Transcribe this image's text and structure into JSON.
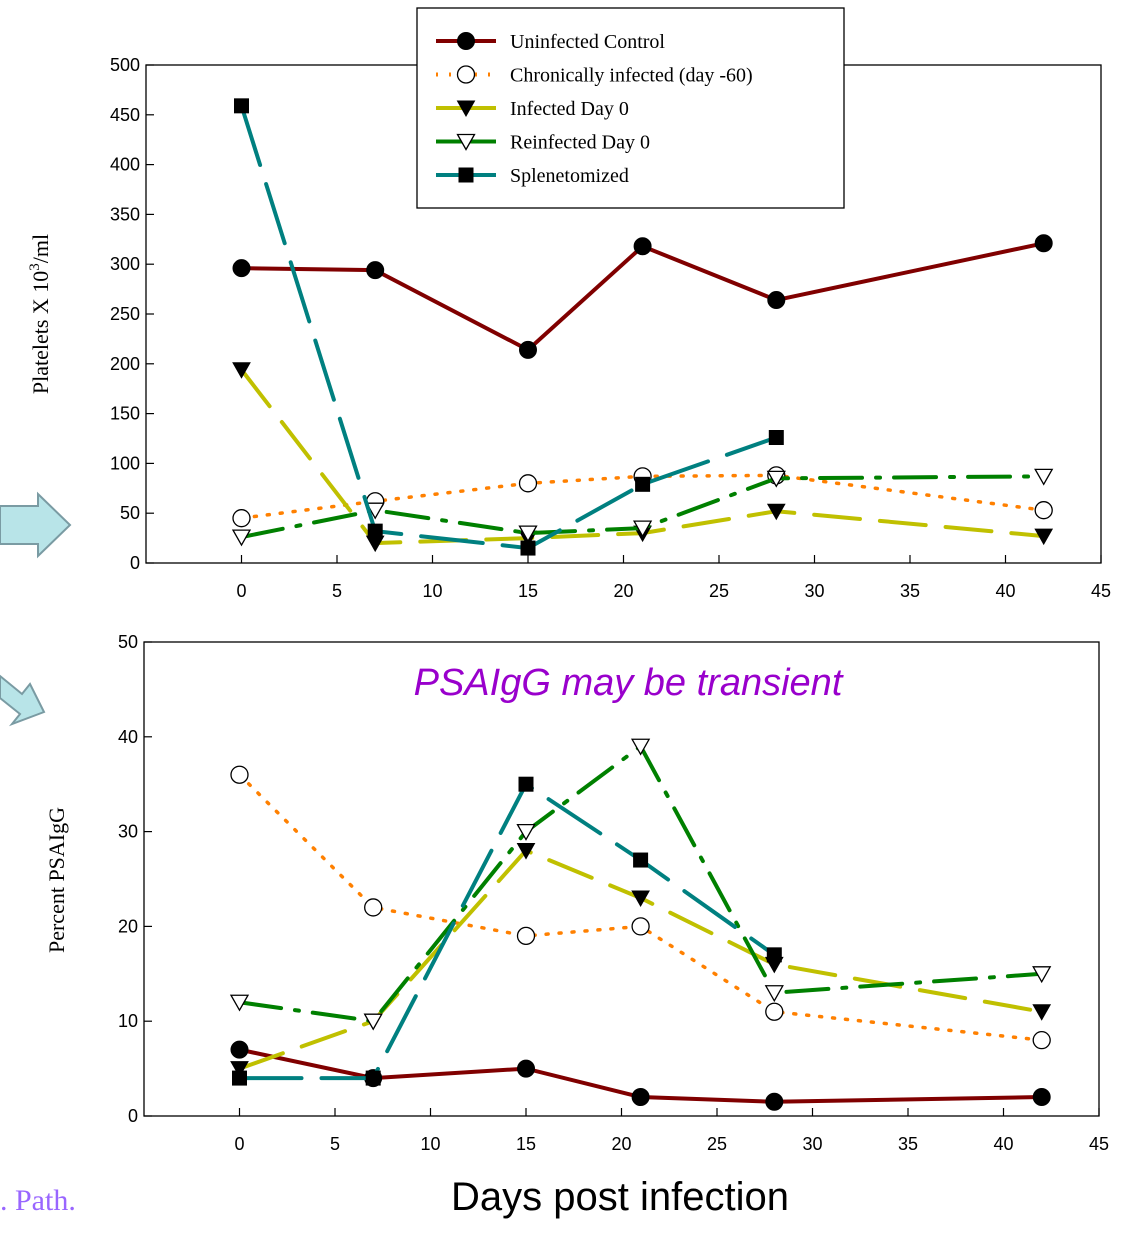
{
  "chart_data": [
    {
      "type": "line",
      "ylabel_main": "Platelets X 10",
      "ylabel_sup": "3",
      "ylabel_tail": "/ml",
      "xlim": [
        -5,
        45
      ],
      "ylim": [
        0,
        500
      ],
      "xticks": [
        0,
        5,
        10,
        15,
        20,
        25,
        30,
        35,
        40,
        45
      ],
      "yticks": [
        0,
        50,
        100,
        150,
        200,
        250,
        300,
        350,
        400,
        450,
        500
      ],
      "grid": false,
      "legend_position": "top-center",
      "series": [
        {
          "name": "Uninfected Control",
          "color": "#800000",
          "dash": "solid",
          "marker": "filled-circle",
          "x": [
            0,
            7,
            15,
            21,
            28,
            42
          ],
          "y": [
            296,
            294,
            214,
            318,
            264,
            321
          ]
        },
        {
          "name": "Chronically infected (day -60)",
          "color": "#FF8000",
          "dash": "dot",
          "marker": "open-circle",
          "x": [
            0,
            7,
            15,
            21,
            28,
            42
          ],
          "y": [
            45,
            62,
            80,
            87,
            88,
            53
          ]
        },
        {
          "name": "Infected Day 0",
          "color": "#C0C000",
          "dash": "longdash",
          "marker": "filled-triangle",
          "x": [
            0,
            7,
            15,
            21,
            28,
            42
          ],
          "y": [
            194,
            20,
            25,
            30,
            52,
            27
          ]
        },
        {
          "name": "Reinfected Day 0",
          "color": "#008000",
          "dash": "dashdot",
          "marker": "open-triangle",
          "x": [
            0,
            7,
            15,
            21,
            28,
            42
          ],
          "y": [
            26,
            53,
            30,
            35,
            85,
            87
          ]
        },
        {
          "name": "Splenetomized",
          "color": "#008080",
          "dash": "dash",
          "marker": "filled-square",
          "x": [
            0,
            7,
            15,
            21,
            28
          ],
          "y": [
            459,
            32,
            15,
            79,
            126
          ]
        }
      ]
    },
    {
      "type": "line",
      "ylabel": "Percent PSAIgG",
      "xlim": [
        -5,
        45
      ],
      "ylim": [
        0,
        50
      ],
      "xticks": [
        0,
        5,
        10,
        15,
        20,
        25,
        30,
        35,
        40,
        45
      ],
      "yticks": [
        0,
        10,
        20,
        30,
        40,
        50
      ],
      "grid": false,
      "annotation": "PSAIgG may be transient",
      "series": [
        {
          "name": "Uninfected Control",
          "color": "#800000",
          "dash": "solid",
          "marker": "filled-circle",
          "x": [
            0,
            7,
            15,
            21,
            28,
            42
          ],
          "y": [
            7,
            4,
            5,
            2,
            1.5,
            2
          ]
        },
        {
          "name": "Chronically infected (day -60)",
          "color": "#FF8000",
          "dash": "dot",
          "marker": "open-circle",
          "x": [
            0,
            7,
            15,
            21,
            28,
            42
          ],
          "y": [
            36,
            22,
            19,
            20,
            11,
            8
          ]
        },
        {
          "name": "Infected Day 0",
          "color": "#C0C000",
          "dash": "longdash",
          "marker": "filled-triangle",
          "x": [
            0,
            7,
            15,
            21,
            28,
            42
          ],
          "y": [
            5,
            10,
            28,
            23,
            16,
            11
          ]
        },
        {
          "name": "Reinfected Day 0",
          "color": "#008000",
          "dash": "dashdot",
          "marker": "open-triangle",
          "x": [
            0,
            7,
            15,
            21,
            28,
            42
          ],
          "y": [
            12,
            10,
            30,
            39,
            13,
            15
          ]
        },
        {
          "name": "Splenetomized",
          "color": "#008080",
          "dash": "dash",
          "marker": "filled-square",
          "x": [
            0,
            7,
            15,
            21,
            28
          ],
          "y": [
            4,
            4,
            35,
            27,
            17
          ]
        }
      ]
    }
  ],
  "xlabel": "Days post infection",
  "citation": ". Path.",
  "colors": {
    "annotation": "#9900CC",
    "citation": "#9966FF",
    "arrow_fill": "#B8E4E8",
    "arrow_stroke": "#7A9BA3"
  }
}
